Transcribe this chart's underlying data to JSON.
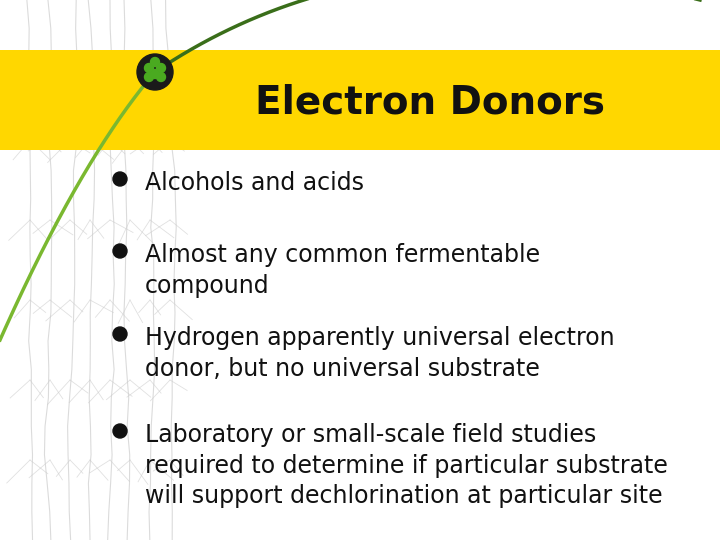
{
  "title": "Electron Donors",
  "title_fontsize": 28,
  "title_color": "#111111",
  "header_bg_color": "#FFD700",
  "bg_color": "#FFFFFF",
  "bullet_points": [
    "Alcohols and acids",
    "Almost any common fermentable\ncompound",
    "Hydrogen apparently universal electron\ndonor, but no universal substrate",
    "Laboratory or small-scale field studies\nrequired to determine if particular substrate\nwill support dechlorination at particular site"
  ],
  "bullet_color": "#111111",
  "bullet_fontsize": 17,
  "green_line_color": "#3a6e1a",
  "green_line_color2": "#7ab830",
  "circle_outer": "#1a1a1a",
  "circle_dots": "#4aaa20",
  "watermark_color": "#CCCCCC"
}
